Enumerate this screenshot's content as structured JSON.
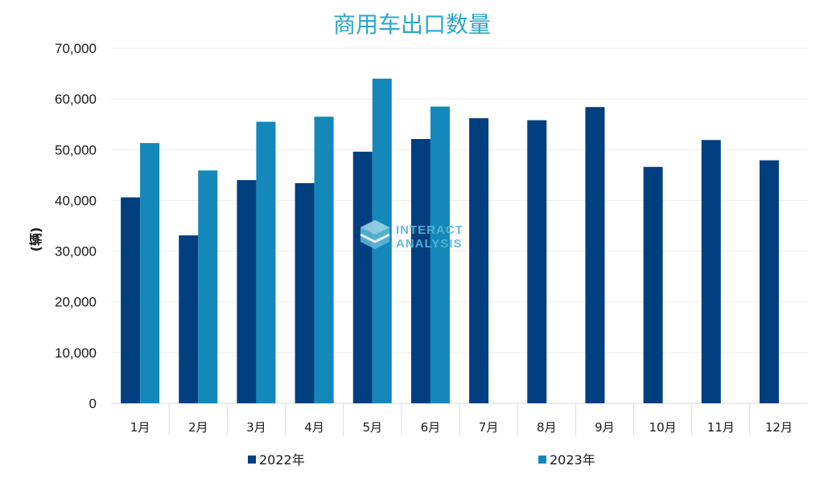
{
  "chart_data": {
    "type": "bar",
    "title": "商用车出口数量",
    "ylabel": "(辆)",
    "xlabel": "",
    "categories": [
      "1月",
      "2月",
      "3月",
      "4月",
      "5月",
      "6月",
      "7月",
      "8月",
      "9月",
      "10月",
      "11月",
      "12月"
    ],
    "series": [
      {
        "name": "2022年",
        "color": "#003F7F",
        "values": [
          40600,
          33100,
          44000,
          43400,
          49600,
          52100,
          56200,
          55800,
          58400,
          46600,
          51900,
          47900
        ]
      },
      {
        "name": "2023年",
        "color": "#1488BA",
        "values": [
          51300,
          45900,
          55500,
          56500,
          64000,
          58500,
          null,
          null,
          null,
          null,
          null,
          null
        ]
      }
    ],
    "ylim": [
      0,
      70000
    ],
    "yticks": [
      "0",
      "10,000",
      "20,000",
      "30,000",
      "40,000",
      "50,000",
      "60,000",
      "70,000"
    ],
    "grid": true,
    "legend": "bottom"
  },
  "watermark": {
    "line1": "INTERACT",
    "line2": "ANALYSIS",
    "icon": "cube-logo-icon"
  }
}
